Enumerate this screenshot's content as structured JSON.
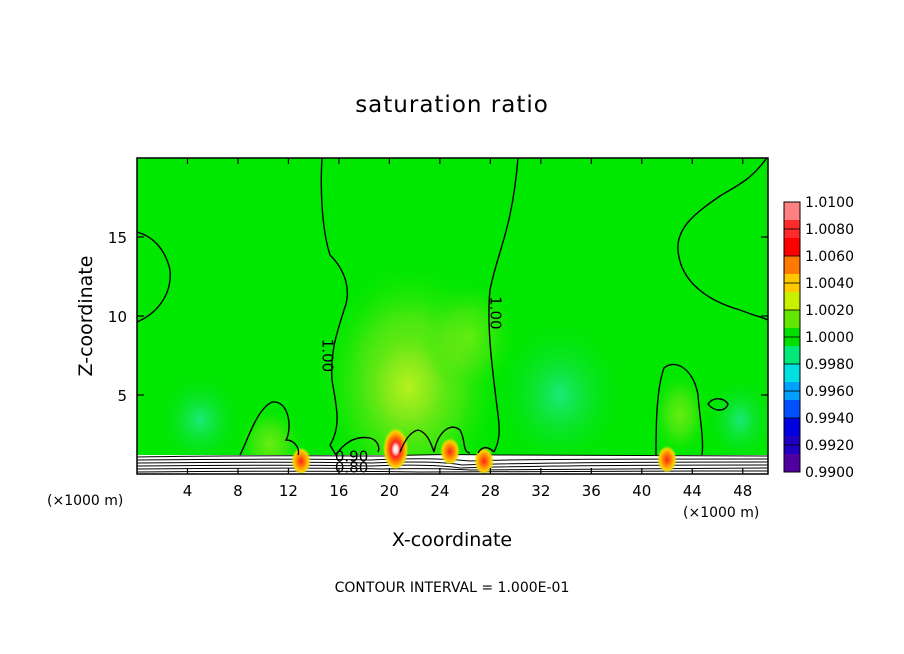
{
  "chart_data": {
    "type": "heatmap",
    "title": "saturation ratio",
    "xlabel": "X-coordinate",
    "ylabel": "Z-coordinate",
    "x_unit_left": "(×1000 m)",
    "x_unit_right": "(×1000 m)",
    "xlim": [
      0,
      50
    ],
    "ylim": [
      0,
      20
    ],
    "x_ticks": [
      4,
      8,
      12,
      16,
      20,
      24,
      28,
      32,
      36,
      40,
      44,
      48
    ],
    "y_ticks": [
      5,
      10,
      15
    ],
    "footer": "CONTOUR INTERVAL = 1.000E-01",
    "colorbar": {
      "levels": [
        "1.0100",
        "1.0080",
        "1.0060",
        "1.0040",
        "1.0020",
        "1.0000",
        "0.9980",
        "0.9960",
        "0.9940",
        "0.9920",
        "0.9900"
      ],
      "colors": [
        "#ff8080",
        "#ff2a2a",
        "#ff0000",
        "#ff7800",
        "#ffc800",
        "#c8f000",
        "#64e600",
        "#00e000",
        "#00e878",
        "#00e0e0",
        "#00a0ff",
        "#0050ff",
        "#0000e0",
        "#2000c0",
        "#5000a0"
      ]
    },
    "contour_labels": [
      {
        "text": "1.00",
        "x": 14.7,
        "z": 7.5
      },
      {
        "text": "1.00",
        "x": 28.0,
        "z": 10.2
      },
      {
        "text": "0.90",
        "x": 17.0,
        "z": 0.8
      },
      {
        "text": "0.80",
        "x": 17.0,
        "z": 0.1
      }
    ],
    "surface_top_z": 1.1,
    "features": [
      {
        "name": "moist-core",
        "x": 20.5,
        "z": 1.2,
        "value": 1.01
      },
      {
        "name": "moist-core",
        "x": 24.8,
        "z": 1.0,
        "value": 1.007
      },
      {
        "name": "moist-core",
        "x": 13.0,
        "z": 0.4,
        "value": 1.005
      },
      {
        "name": "moist-core",
        "x": 27.5,
        "z": 0.4,
        "value": 1.005
      },
      {
        "name": "moist-core",
        "x": 42.0,
        "z": 0.5,
        "value": 1.006
      }
    ],
    "grid": false,
    "legend_position": "right"
  }
}
